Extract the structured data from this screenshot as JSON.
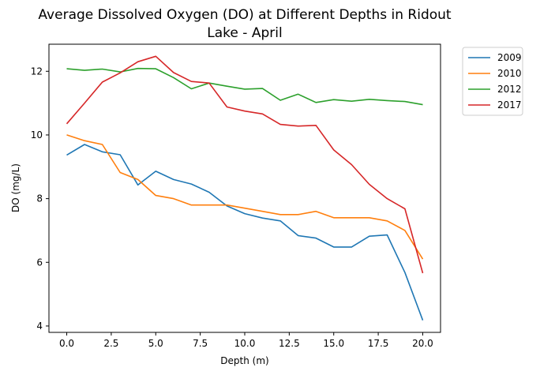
{
  "chart_data": {
    "type": "line",
    "title": "Average Dissolved Oxygen (DO) at Different Depths in Ridout Lake - April",
    "title_lines": [
      "Average Dissolved Oxygen (DO) at Different Depths in Ridout",
      "Lake - April"
    ],
    "xlabel": "Depth (m)",
    "ylabel": "DO (mg/L)",
    "xlim": [
      -1,
      21
    ],
    "ylim": [
      3.8,
      12.85
    ],
    "xticks": [
      0.0,
      2.5,
      5.0,
      7.5,
      10.0,
      12.5,
      15.0,
      17.5,
      20.0
    ],
    "xtick_labels": [
      "0.0",
      "2.5",
      "5.0",
      "7.5",
      "10.0",
      "12.5",
      "15.0",
      "17.5",
      "20.0"
    ],
    "yticks": [
      4,
      6,
      8,
      10,
      12
    ],
    "ytick_labels": [
      "4",
      "6",
      "8",
      "10",
      "12"
    ],
    "grid": false,
    "legend_position": "outside upper right",
    "x": [
      0,
      1,
      2,
      3,
      4,
      5,
      6,
      7,
      8,
      9,
      10,
      11,
      12,
      13,
      14,
      15,
      16,
      17,
      18,
      19,
      20
    ],
    "series": [
      {
        "name": "2009",
        "color": "#1f77b4",
        "values": [
          9.37,
          9.7,
          9.47,
          9.38,
          8.43,
          8.86,
          8.6,
          8.46,
          8.2,
          7.77,
          7.53,
          7.39,
          7.3,
          6.84,
          6.76,
          6.48,
          6.48,
          6.82,
          6.86,
          5.68,
          4.18
        ]
      },
      {
        "name": "2010",
        "color": "#ff7f0e",
        "values": [
          10.0,
          9.82,
          9.7,
          8.82,
          8.6,
          8.1,
          8.0,
          7.8,
          7.8,
          7.8,
          7.7,
          7.6,
          7.5,
          7.5,
          7.6,
          7.4,
          7.4,
          7.4,
          7.3,
          7.0,
          6.1
        ]
      },
      {
        "name": "2012",
        "color": "#2ca02c",
        "values": [
          12.08,
          12.03,
          12.07,
          11.98,
          12.09,
          12.08,
          11.8,
          11.45,
          11.63,
          11.53,
          11.44,
          11.46,
          11.09,
          11.28,
          11.02,
          11.11,
          11.06,
          11.12,
          11.08,
          11.05,
          10.95
        ]
      },
      {
        "name": "2017",
        "color": "#d62728",
        "values": [
          10.35,
          11.0,
          11.66,
          11.95,
          12.3,
          12.47,
          11.96,
          11.68,
          11.63,
          10.88,
          10.75,
          10.66,
          10.33,
          10.28,
          10.3,
          9.53,
          9.07,
          8.45,
          8.0,
          7.68,
          5.66
        ]
      }
    ]
  }
}
